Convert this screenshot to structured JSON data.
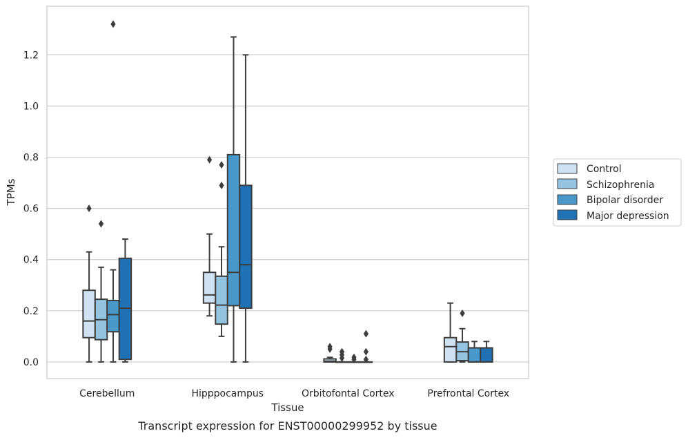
{
  "caption": "Transcript expression for ENST00000299952 by tissue",
  "chart_data": {
    "type": "box",
    "xlabel": "Tissue",
    "ylabel": "TPMs",
    "ylim": [
      -0.065,
      1.39
    ],
    "yticks": [
      "0.0",
      "0.2",
      "0.4",
      "0.6",
      "0.8",
      "1.0",
      "1.2"
    ],
    "grid": "horizontal",
    "legend_position": "right",
    "categories": [
      "Cerebellum",
      "Hipppocampus",
      "Orbitofontal Cortex",
      "Prefrontal Cortex"
    ],
    "series": [
      {
        "name": "Control",
        "color": "#d0e1f2",
        "boxes": [
          {
            "whislo": 0.0,
            "q1": 0.095,
            "med": 0.16,
            "q3": 0.28,
            "whishi": 0.43,
            "fliers": [
              0.6
            ]
          },
          {
            "whislo": 0.18,
            "q1": 0.23,
            "med": 0.262,
            "q3": 0.35,
            "whishi": 0.5,
            "fliers": [
              0.79
            ]
          },
          {
            "whislo": 0.0,
            "q1": 0.0,
            "med": 0.003,
            "q3": 0.012,
            "whishi": 0.018,
            "fliers": [
              0.05,
              0.06
            ]
          },
          {
            "whislo": 0.0,
            "q1": 0.0,
            "med": 0.06,
            "q3": 0.095,
            "whishi": 0.23,
            "fliers": []
          }
        ]
      },
      {
        "name": "Schizophrenia",
        "color": "#94c4df",
        "boxes": [
          {
            "whislo": 0.0,
            "q1": 0.087,
            "med": 0.165,
            "q3": 0.245,
            "whishi": 0.37,
            "fliers": [
              0.54
            ]
          },
          {
            "whislo": 0.1,
            "q1": 0.148,
            "med": 0.222,
            "q3": 0.335,
            "whishi": 0.45,
            "fliers": [
              0.69,
              0.77
            ]
          },
          {
            "whislo": 0.0,
            "q1": 0.0,
            "med": 0.0,
            "q3": 0.0,
            "whishi": 0.0,
            "fliers": [
              0.015,
              0.028,
              0.04
            ]
          },
          {
            "whislo": 0.0,
            "q1": 0.005,
            "med": 0.04,
            "q3": 0.078,
            "whishi": 0.13,
            "fliers": [
              0.19
            ]
          }
        ]
      },
      {
        "name": "Bipolar disorder",
        "color": "#4a98c9",
        "boxes": [
          {
            "whislo": 0.0,
            "q1": 0.118,
            "med": 0.185,
            "q3": 0.24,
            "whishi": 0.36,
            "fliers": [
              1.32
            ]
          },
          {
            "whislo": 0.0,
            "q1": 0.22,
            "med": 0.35,
            "q3": 0.81,
            "whishi": 1.27,
            "fliers": []
          },
          {
            "whislo": 0.0,
            "q1": 0.0,
            "med": 0.0,
            "q3": 0.0,
            "whishi": 0.0,
            "fliers": [
              0.01,
              0.018
            ]
          },
          {
            "whislo": 0.0,
            "q1": 0.0,
            "med": 0.0,
            "q3": 0.055,
            "whishi": 0.08,
            "fliers": []
          }
        ]
      },
      {
        "name": "Major depression",
        "color": "#2171b5",
        "boxes": [
          {
            "whislo": 0.0,
            "q1": 0.01,
            "med": 0.21,
            "q3": 0.405,
            "whishi": 0.48,
            "fliers": []
          },
          {
            "whislo": 0.0,
            "q1": 0.21,
            "med": 0.38,
            "q3": 0.69,
            "whishi": 1.2,
            "fliers": []
          },
          {
            "whislo": 0.0,
            "q1": 0.0,
            "med": 0.0,
            "q3": 0.0,
            "whishi": 0.0,
            "fliers": [
              0.01,
              0.04,
              0.11
            ]
          },
          {
            "whislo": 0.0,
            "q1": 0.0,
            "med": 0.0,
            "q3": 0.055,
            "whishi": 0.08,
            "fliers": []
          }
        ]
      }
    ]
  }
}
